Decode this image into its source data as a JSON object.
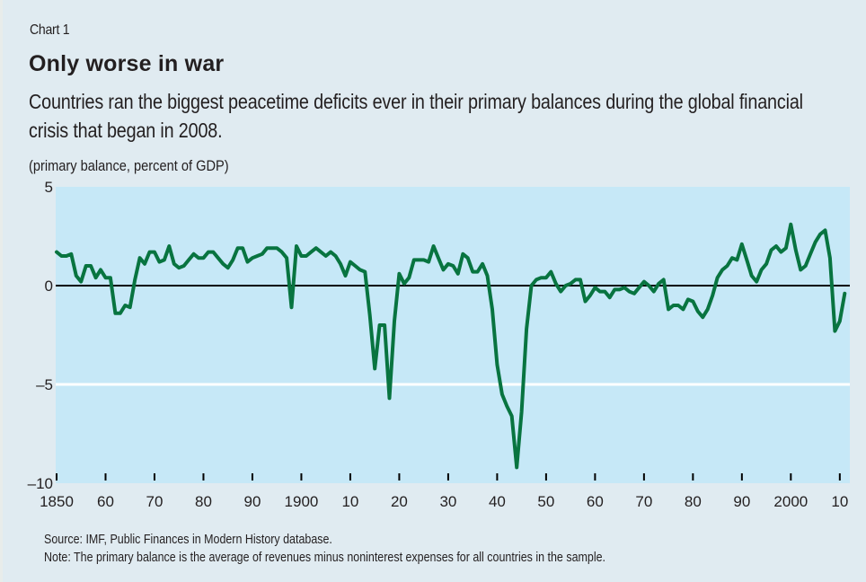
{
  "header": {
    "chart_number": "Chart 1",
    "title": "Only worse in war",
    "subtitle": "Countries ran the biggest peacetime deficits ever in their primary balances during the global financial crisis that began in 2008.",
    "unit_label": "(primary balance, percent of GDP)"
  },
  "footer": {
    "source": "Source: IMF, Public Finances in Modern History database.",
    "note": "Note: The primary balance is the average of revenues minus noninterest expenses for all countries in the sample."
  },
  "colors": {
    "page_background": "#e0ebf1",
    "plot_background": "#c6e8f7",
    "line": "#087440",
    "zero_line": "#000000",
    "gridline": "#ffffff"
  },
  "chart_data": {
    "type": "line",
    "title": "Only worse in war",
    "subtitle": "Countries ran the biggest peacetime deficits ever in their primary balances during the global financial crisis that began in 2008.",
    "xlabel": "",
    "ylabel": "(primary balance, percent of GDP)",
    "xlim": [
      1850,
      2011
    ],
    "ylim": [
      -10,
      5
    ],
    "y_ticks": [
      5,
      0,
      -5,
      -10
    ],
    "y_tick_labels": [
      "5",
      "0",
      "–5",
      "–10"
    ],
    "x_ticks": [
      1850,
      1860,
      1870,
      1880,
      1890,
      1900,
      1910,
      1920,
      1930,
      1940,
      1950,
      1960,
      1970,
      1980,
      1990,
      2000,
      2010
    ],
    "x_tick_labels": [
      "1850",
      "60",
      "70",
      "80",
      "90",
      "1900",
      "10",
      "20",
      "30",
      "40",
      "50",
      "60",
      "70",
      "80",
      "90",
      "2000",
      "10"
    ],
    "grid": "horizontal at -5 (white); zero line black",
    "legend": "none",
    "series": [
      {
        "name": "Primary balance",
        "x": [
          1850,
          1851,
          1852,
          1853,
          1854,
          1855,
          1856,
          1857,
          1858,
          1859,
          1860,
          1861,
          1862,
          1863,
          1864,
          1865,
          1866,
          1867,
          1868,
          1869,
          1870,
          1871,
          1872,
          1873,
          1874,
          1875,
          1876,
          1877,
          1878,
          1879,
          1880,
          1881,
          1882,
          1883,
          1884,
          1885,
          1886,
          1887,
          1888,
          1889,
          1890,
          1891,
          1892,
          1893,
          1894,
          1895,
          1896,
          1897,
          1898,
          1899,
          1900,
          1901,
          1902,
          1903,
          1904,
          1905,
          1906,
          1907,
          1908,
          1909,
          1910,
          1911,
          1912,
          1913,
          1914,
          1915,
          1916,
          1917,
          1918,
          1919,
          1920,
          1921,
          1922,
          1923,
          1924,
          1925,
          1926,
          1927,
          1928,
          1929,
          1930,
          1931,
          1932,
          1933,
          1934,
          1935,
          1936,
          1937,
          1938,
          1939,
          1940,
          1941,
          1942,
          1943,
          1944,
          1945,
          1946,
          1947,
          1948,
          1949,
          1950,
          1951,
          1952,
          1953,
          1954,
          1955,
          1956,
          1957,
          1958,
          1959,
          1960,
          1961,
          1962,
          1963,
          1964,
          1965,
          1966,
          1967,
          1968,
          1969,
          1970,
          1971,
          1972,
          1973,
          1974,
          1975,
          1976,
          1977,
          1978,
          1979,
          1980,
          1981,
          1982,
          1983,
          1984,
          1985,
          1986,
          1987,
          1988,
          1989,
          1990,
          1991,
          1992,
          1993,
          1994,
          1995,
          1996,
          1997,
          1998,
          1999,
          2000,
          2001,
          2002,
          2003,
          2004,
          2005,
          2006,
          2007,
          2008,
          2009,
          2010,
          2011
        ],
        "values": [
          1.7,
          1.5,
          1.5,
          1.6,
          0.5,
          0.2,
          1.0,
          1.0,
          0.4,
          0.8,
          0.4,
          0.4,
          -1.4,
          -1.4,
          -1.0,
          -1.1,
          0.3,
          1.4,
          1.1,
          1.7,
          1.7,
          1.2,
          1.3,
          2.0,
          1.1,
          0.9,
          1.0,
          1.3,
          1.6,
          1.4,
          1.4,
          1.7,
          1.7,
          1.4,
          1.1,
          0.9,
          1.3,
          1.9,
          1.9,
          1.2,
          1.4,
          1.5,
          1.6,
          1.9,
          1.9,
          1.9,
          1.7,
          1.4,
          -1.1,
          2.0,
          1.5,
          1.5,
          1.7,
          1.9,
          1.7,
          1.5,
          1.7,
          1.5,
          1.1,
          0.5,
          1.2,
          1.0,
          0.8,
          0.7,
          -1.5,
          -4.2,
          -2.0,
          -2.0,
          -5.7,
          -1.8,
          0.6,
          0.1,
          0.4,
          1.3,
          1.3,
          1.3,
          1.2,
          2.0,
          1.4,
          0.8,
          1.1,
          1.0,
          0.6,
          1.6,
          1.4,
          0.7,
          0.7,
          1.1,
          0.5,
          -1.2,
          -4.0,
          -5.5,
          -6.1,
          -6.6,
          -9.2,
          -6.4,
          -2.2,
          0.0,
          0.3,
          0.4,
          0.4,
          0.7,
          0.1,
          -0.3,
          0.0,
          0.1,
          0.3,
          0.3,
          -0.8,
          -0.5,
          -0.1,
          -0.3,
          -0.3,
          -0.6,
          -0.2,
          -0.2,
          -0.1,
          -0.3,
          -0.4,
          -0.1,
          0.2,
          0.0,
          -0.3,
          0.1,
          0.3,
          -1.2,
          -1.0,
          -1.0,
          -1.2,
          -0.7,
          -0.8,
          -1.3,
          -1.6,
          -1.2,
          -0.5,
          0.4,
          0.8,
          1.0,
          1.4,
          1.3,
          2.1,
          1.3,
          0.5,
          0.2,
          0.8,
          1.1,
          1.8,
          2.0,
          1.7,
          1.9,
          3.1,
          1.8,
          0.8,
          1.0,
          1.6,
          2.2,
          2.6,
          2.8,
          1.4,
          -2.3,
          -1.8,
          -0.4
        ]
      }
    ]
  }
}
